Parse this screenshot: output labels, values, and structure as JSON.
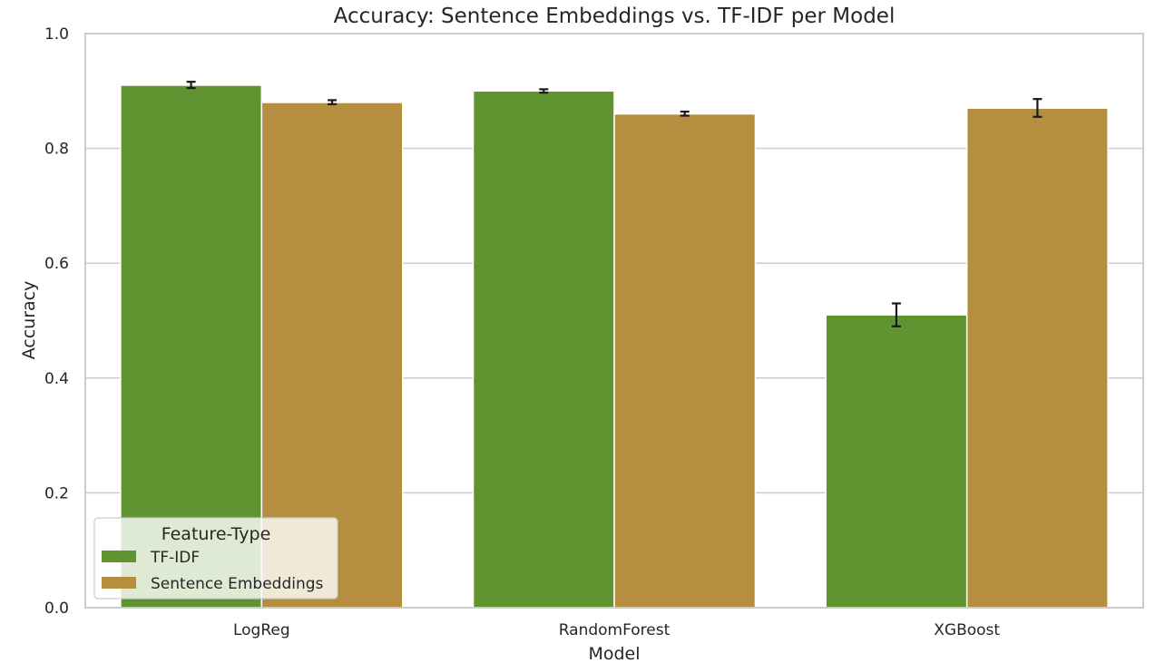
{
  "chart_data": {
    "type": "bar",
    "title": "Accuracy: Sentence Embeddings vs. TF-IDF per Model",
    "xlabel": "Model",
    "ylabel": "Accuracy",
    "categories": [
      "LogReg",
      "RandomForest",
      "XGBoost"
    ],
    "ylim": [
      0,
      1.0
    ],
    "yticks": [
      "0.0",
      "0.2",
      "0.4",
      "0.6",
      "0.8",
      "1.0"
    ],
    "grid": "horizontal",
    "legend": {
      "title": "Feature-Type",
      "placement": "lower-left"
    },
    "series": [
      {
        "name": "TF-IDF",
        "color": "#5f9431",
        "values": [
          0.91,
          0.9,
          0.51
        ],
        "error_low": [
          0.905,
          0.897,
          0.49
        ],
        "error_high": [
          0.916,
          0.903,
          0.53
        ]
      },
      {
        "name": "Sentence Embeddings",
        "color": "#b58f3f",
        "values": [
          0.88,
          0.86,
          0.87
        ],
        "error_low": [
          0.877,
          0.857,
          0.855
        ],
        "error_high": [
          0.884,
          0.864,
          0.886
        ]
      }
    ]
  }
}
